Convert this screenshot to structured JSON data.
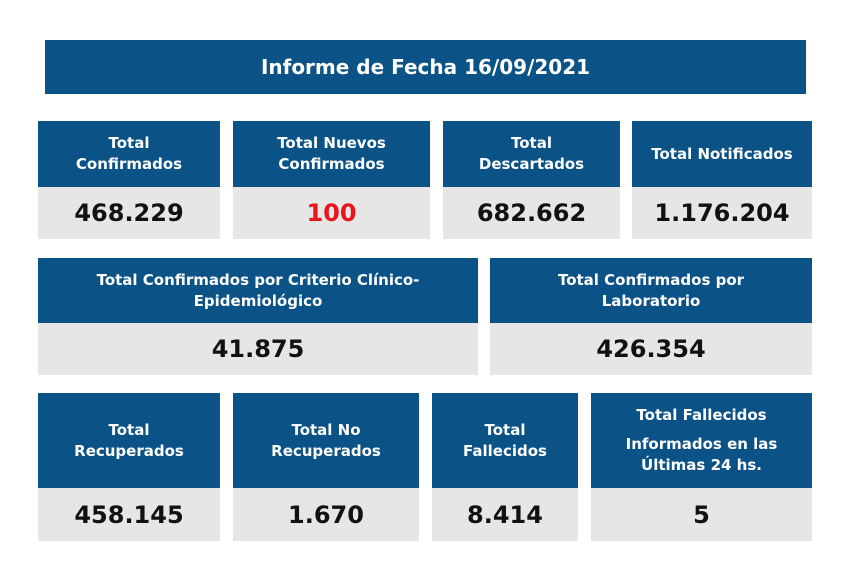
{
  "header": {
    "title": "Informe de Fecha 16/09/2021"
  },
  "row1": [
    {
      "label_lines": [
        "Total",
        "Confirmados"
      ],
      "value": "468.229"
    },
    {
      "label_lines": [
        "Total Nuevos",
        "Confirmados"
      ],
      "value": "100"
    },
    {
      "label_lines": [
        "Total",
        "Descartados"
      ],
      "value": "682.662"
    },
    {
      "label_lines": [
        "Total Notificados"
      ],
      "value": "1.176.204"
    }
  ],
  "row2": [
    {
      "label_lines": [
        "Total Confirmados por Criterio Clínico-",
        "Epidemiológico"
      ],
      "value": "41.875"
    },
    {
      "label_lines": [
        "Total Confirmados por",
        "Laboratorio"
      ],
      "value": "426.354"
    }
  ],
  "row3": [
    {
      "label_lines": [
        "Total",
        "Recuperados"
      ],
      "value": "458.145"
    },
    {
      "label_lines": [
        "Total No",
        "Recuperados"
      ],
      "value": "1.670"
    },
    {
      "label_lines": [
        "Total",
        "Fallecidos"
      ],
      "value": "8.414"
    },
    {
      "label_lines": [
        "Total Fallecidos",
        "Informados en las",
        "Últimas 24 hs."
      ],
      "value": "5"
    }
  ],
  "colors": {
    "header_blue": "#0b5286",
    "value_bg": "#e6e6e6",
    "highlight_red": "#e8151d"
  }
}
